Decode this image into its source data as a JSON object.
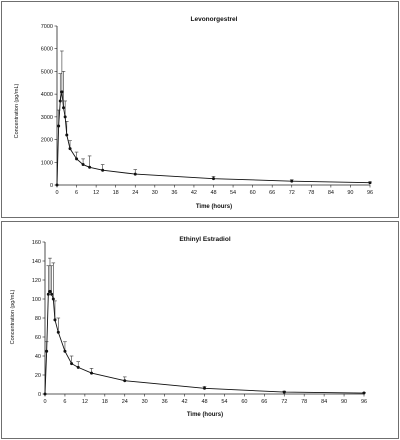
{
  "charts": [
    {
      "chart_data": {
        "type": "line",
        "title": "Levonorgestrel",
        "xlabel": "Time (hours)",
        "ylabel": "Concentration (pg/mL)",
        "xlim": [
          0,
          96
        ],
        "ylim": [
          0,
          7000
        ],
        "xticks": [
          0,
          6,
          12,
          18,
          24,
          30,
          36,
          42,
          48,
          54,
          60,
          66,
          72,
          78,
          84,
          90,
          96
        ],
        "yticks": [
          0,
          1000,
          2000,
          3000,
          4000,
          5000,
          6000,
          7000
        ],
        "grid": false,
        "series": [
          {
            "x": [
              0,
              0.5,
              1,
              1.5,
              2,
              2.5,
              3,
              4,
              6,
              8,
              10,
              14,
              24,
              48,
              72,
              96
            ],
            "y": [
              0,
              2600,
              3700,
              4100,
              3400,
              3000,
              2200,
              1600,
              1150,
              900,
              780,
              650,
              480,
              280,
              170,
              100
            ],
            "err": [
              0,
              700,
              1200,
              1800,
              1600,
              700,
              600,
              350,
              300,
              250,
              500,
              250,
              200,
              100,
              60,
              40
            ]
          }
        ]
      }
    },
    {
      "chart_data": {
        "type": "line",
        "title": "Ethinyl Estradiol",
        "xlabel": "Time (hours)",
        "ylabel": "Concentration (pg/mL)",
        "xlim": [
          0,
          96
        ],
        "ylim": [
          0,
          160
        ],
        "xticks": [
          0,
          6,
          12,
          18,
          24,
          30,
          36,
          42,
          48,
          54,
          60,
          66,
          72,
          78,
          84,
          90,
          96
        ],
        "yticks": [
          0,
          20,
          40,
          60,
          80,
          100,
          120,
          140,
          160
        ],
        "grid": false,
        "series": [
          {
            "x": [
              0,
              0.5,
              1,
              1.5,
              2,
              2.5,
              3,
              4,
              6,
              8,
              10,
              14,
              24,
              48,
              72,
              96
            ],
            "y": [
              0,
              45,
              105,
              108,
              105,
              100,
              78,
              65,
              45,
              32,
              28,
              22,
              14,
              6,
              2,
              1
            ],
            "err": [
              0,
              10,
              30,
              35,
              30,
              38,
              20,
              15,
              10,
              8,
              6,
              5,
              4,
              2,
              1,
              0.5
            ]
          }
        ]
      }
    }
  ]
}
